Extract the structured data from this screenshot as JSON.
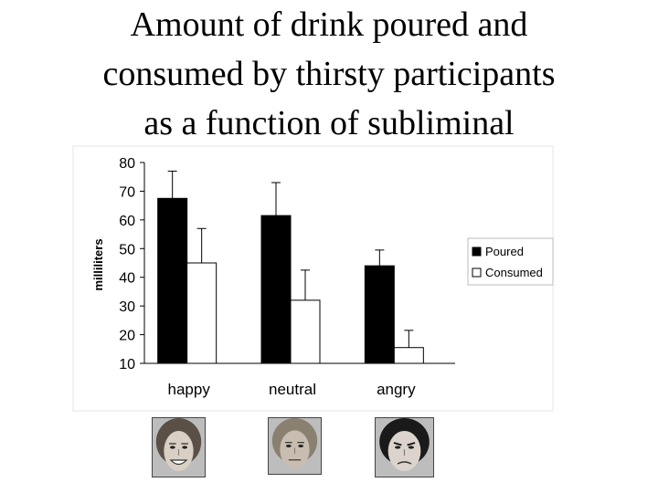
{
  "title_lines": [
    "Amount of drink poured and",
    "consumed by thirsty participants",
    "as a function of subliminal"
  ],
  "chart_data": {
    "type": "bar",
    "categories": [
      "happy",
      "neutral",
      "angry"
    ],
    "ylabel": "milliliters",
    "ylim": [
      10,
      80
    ],
    "yticks": [
      10,
      20,
      30,
      40,
      50,
      60,
      70,
      80
    ],
    "grid": false,
    "legend_position": "right",
    "series": [
      {
        "name": "Poured",
        "values": [
          67.5,
          61.5,
          44
        ],
        "error": [
          9.5,
          11.5,
          5.5
        ],
        "fill": "#000000"
      },
      {
        "name": "Consumed",
        "values": [
          45,
          32,
          15.5
        ],
        "error": [
          12,
          10.5,
          6
        ],
        "fill": "#ffffff"
      }
    ]
  },
  "faces": [
    {
      "name": "happy",
      "hair": "#5a5048",
      "skin": "#d9cfc4"
    },
    {
      "name": "neutral",
      "hair": "#8a8070",
      "skin": "#c8bdb0"
    },
    {
      "name": "angry",
      "hair": "#1a1a1a",
      "skin": "#dcd4cc"
    }
  ]
}
